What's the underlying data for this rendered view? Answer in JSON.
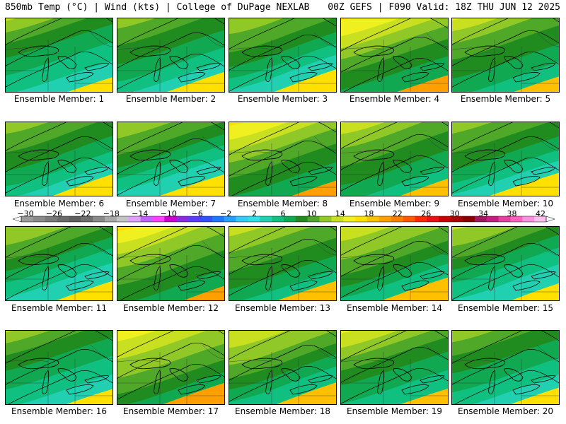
{
  "header": {
    "left": "850mb Temp (°C) | Wind (kts) | College of DuPage NEXLAB",
    "right": "00Z GEFS | F090 Valid: 18Z THU JUN 12 2025"
  },
  "panels": [
    {
      "label": "Ensemble Member: 1",
      "warmth": 0.55
    },
    {
      "label": "Ensemble Member: 2",
      "warmth": 0.45
    },
    {
      "label": "Ensemble Member: 3",
      "warmth": 0.55
    },
    {
      "label": "Ensemble Member: 4",
      "warmth": 0.75
    },
    {
      "label": "Ensemble Member: 5",
      "warmth": 0.65
    },
    {
      "label": "Ensemble Member: 6",
      "warmth": 0.55
    },
    {
      "label": "Ensemble Member: 7",
      "warmth": 0.45
    },
    {
      "label": "Ensemble Member: 8",
      "warmth": 0.75
    },
    {
      "label": "Ensemble Member: 9",
      "warmth": 0.7
    },
    {
      "label": "Ensemble Member: 10",
      "warmth": 0.55
    },
    {
      "label": "Ensemble Member: 11",
      "warmth": 0.55
    },
    {
      "label": "Ensemble Member: 12",
      "warmth": 0.8
    },
    {
      "label": "Ensemble Member: 13",
      "warmth": 0.65
    },
    {
      "label": "Ensemble Member: 14",
      "warmth": 0.6
    },
    {
      "label": "Ensemble Member: 15",
      "warmth": 0.55
    },
    {
      "label": "Ensemble Member: 16",
      "warmth": 0.55
    },
    {
      "label": "Ensemble Member: 17",
      "warmth": 0.85
    },
    {
      "label": "Ensemble Member: 18",
      "warmth": 0.65
    },
    {
      "label": "Ensemble Member: 19",
      "warmth": 0.65
    },
    {
      "label": "Ensemble Member: 20",
      "warmth": 0.55
    }
  ],
  "colorbar": {
    "labels": [
      "-30",
      "-26",
      "-22",
      "-18",
      "-14",
      "-10",
      "-6",
      "-2",
      "2",
      "6",
      "10",
      "14",
      "18",
      "22",
      "26",
      "30",
      "34",
      "38",
      "42"
    ],
    "colors": [
      "#9a9a9a",
      "#8a8a8a",
      "#7a7a7a",
      "#6a6a6a",
      "#5e5e5e",
      "#6e6e6e",
      "#8a8a8a",
      "#a8a8a8",
      "#c4c4c4",
      "#e0a0ff",
      "#c060ff",
      "#ff40ff",
      "#cc00cc",
      "#8a2be2",
      "#5a3cff",
      "#3050ff",
      "#1e78ff",
      "#28a0ff",
      "#36c8ff",
      "#30e0e8",
      "#20d0b0",
      "#10c080",
      "#10a850",
      "#208c20",
      "#50a828",
      "#90c828",
      "#c8e020",
      "#f0f020",
      "#ffe000",
      "#ffc000",
      "#ffa000",
      "#ff8000",
      "#ff5800",
      "#ff2800",
      "#e81010",
      "#c80000",
      "#a80000",
      "#880000",
      "#a01860",
      "#c02080",
      "#e040a0",
      "#ff60c0",
      "#ff90e0",
      "#ffc0f0"
    ]
  }
}
